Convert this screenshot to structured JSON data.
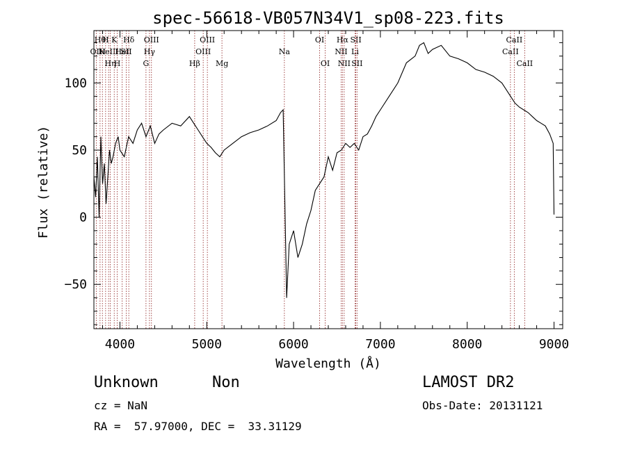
{
  "chart_data": {
    "type": "line",
    "title": "spec-56618-VB057N34V1_sp08-223.fits",
    "xlabel": "Wavelength (Å)",
    "ylabel": "Flux (relative)",
    "xlim": [
      3700,
      9100
    ],
    "ylim": [
      -83,
      139
    ],
    "xticks": [
      4000,
      5000,
      6000,
      7000,
      8000,
      9000
    ],
    "xtick_labels": [
      "4000",
      "5000",
      "6000",
      "7000",
      "8000",
      "9000"
    ],
    "yticks": [
      -50,
      0,
      50,
      100
    ],
    "ytick_labels": [
      "−50",
      "0",
      "50",
      "100"
    ],
    "grid": false,
    "line_color": "#000000",
    "marker_line_color": "#8b1a1a",
    "series": [
      {
        "x": [
          3700,
          3720,
          3740,
          3760,
          3780,
          3800,
          3820,
          3840,
          3860,
          3880,
          3900,
          3920,
          3950,
          3980,
          4000,
          4050,
          4100,
          4150,
          4200,
          4250,
          4300,
          4350,
          4400,
          4450,
          4500,
          4600,
          4700,
          4800,
          4850,
          4900,
          4950,
          5000,
          5050,
          5100,
          5150,
          5200,
          5300,
          5400,
          5500,
          5600,
          5700,
          5800,
          5850,
          5880,
          5900,
          5920,
          5950,
          6000,
          6050,
          6100,
          6150,
          6200,
          6250,
          6300,
          6350,
          6400,
          6450,
          6500,
          6550,
          6600,
          6650,
          6700,
          6750,
          6800,
          6850,
          6900,
          6950,
          7000,
          7100,
          7200,
          7300,
          7400,
          7450,
          7500,
          7550,
          7600,
          7700,
          7800,
          7900,
          8000,
          8100,
          8200,
          8300,
          8400,
          8500,
          8550,
          8600,
          8650,
          8700,
          8750,
          8800,
          8850,
          8900,
          8950,
          8990,
          9000
        ],
        "y": [
          30,
          15,
          45,
          0,
          60,
          25,
          40,
          10,
          30,
          50,
          40,
          45,
          55,
          60,
          50,
          45,
          60,
          55,
          65,
          70,
          60,
          68,
          55,
          62,
          65,
          70,
          68,
          75,
          70,
          65,
          60,
          55,
          52,
          48,
          45,
          50,
          55,
          60,
          63,
          65,
          68,
          72,
          78,
          80,
          10,
          -60,
          -20,
          -10,
          -30,
          -20,
          -5,
          5,
          20,
          25,
          30,
          45,
          35,
          48,
          50,
          55,
          52,
          55,
          50,
          60,
          62,
          68,
          75,
          80,
          90,
          100,
          115,
          120,
          128,
          130,
          122,
          125,
          128,
          120,
          118,
          115,
          110,
          108,
          105,
          100,
          90,
          85,
          82,
          80,
          78,
          75,
          72,
          70,
          68,
          62,
          55,
          2
        ]
      }
    ],
    "markers": [
      {
        "wave": 3771,
        "label": "Hθ",
        "row": 1
      },
      {
        "wave": 3798,
        "label": "H",
        "row": 2
      },
      {
        "wave": 3835,
        "label": "H",
        "row": 1
      },
      {
        "wave": 3727,
        "label": "OII",
        "row": 2
      },
      {
        "wave": 3869,
        "label": "NeIII",
        "row": 2
      },
      {
        "wave": 3889,
        "label": "Hη",
        "row": 3
      },
      {
        "wave": 3934,
        "label": "K",
        "row": 1
      },
      {
        "wave": 3969,
        "label": "H",
        "row": 3
      },
      {
        "wave": 4026,
        "label": "HeI",
        "row": 2
      },
      {
        "wave": 4072,
        "label": "SII",
        "row": 2
      },
      {
        "wave": 4102,
        "label": "Hδ",
        "row": 1
      },
      {
        "wave": 4300,
        "label": "G",
        "row": 3
      },
      {
        "wave": 4340,
        "label": "Hγ",
        "row": 2
      },
      {
        "wave": 4363,
        "label": "OIII",
        "row": 1
      },
      {
        "wave": 4861,
        "label": "Hβ",
        "row": 3
      },
      {
        "wave": 4959,
        "label": "OIII",
        "row": 2
      },
      {
        "wave": 5007,
        "label": "OIII",
        "row": 1
      },
      {
        "wave": 5175,
        "label": "Mg",
        "row": 3
      },
      {
        "wave": 5894,
        "label": "Na",
        "row": 2
      },
      {
        "wave": 6300,
        "label": "OI",
        "row": 1
      },
      {
        "wave": 6364,
        "label": "OI",
        "row": 3
      },
      {
        "wave": 6548,
        "label": "NII",
        "row": 2
      },
      {
        "wave": 6563,
        "label": "Hα",
        "row": 1
      },
      {
        "wave": 6583,
        "label": "NII",
        "row": 3
      },
      {
        "wave": 6708,
        "label": "Li",
        "row": 2
      },
      {
        "wave": 6717,
        "label": "SII",
        "row": 1
      },
      {
        "wave": 6731,
        "label": "SII",
        "row": 3
      },
      {
        "wave": 8498,
        "label": "CaII",
        "row": 2
      },
      {
        "wave": 8542,
        "label": "CaII",
        "row": 1
      },
      {
        "wave": 8662,
        "label": "CaII",
        "row": 3
      }
    ]
  },
  "info": {
    "class_label": "Unknown",
    "subclass_label": "Non",
    "cz_text": "cz = NaN",
    "radec_text": "RA =  57.97000, DEC =  33.31129",
    "survey_label": "LAMOST DR2",
    "obs_date_text": "Obs-Date: 20131121"
  }
}
